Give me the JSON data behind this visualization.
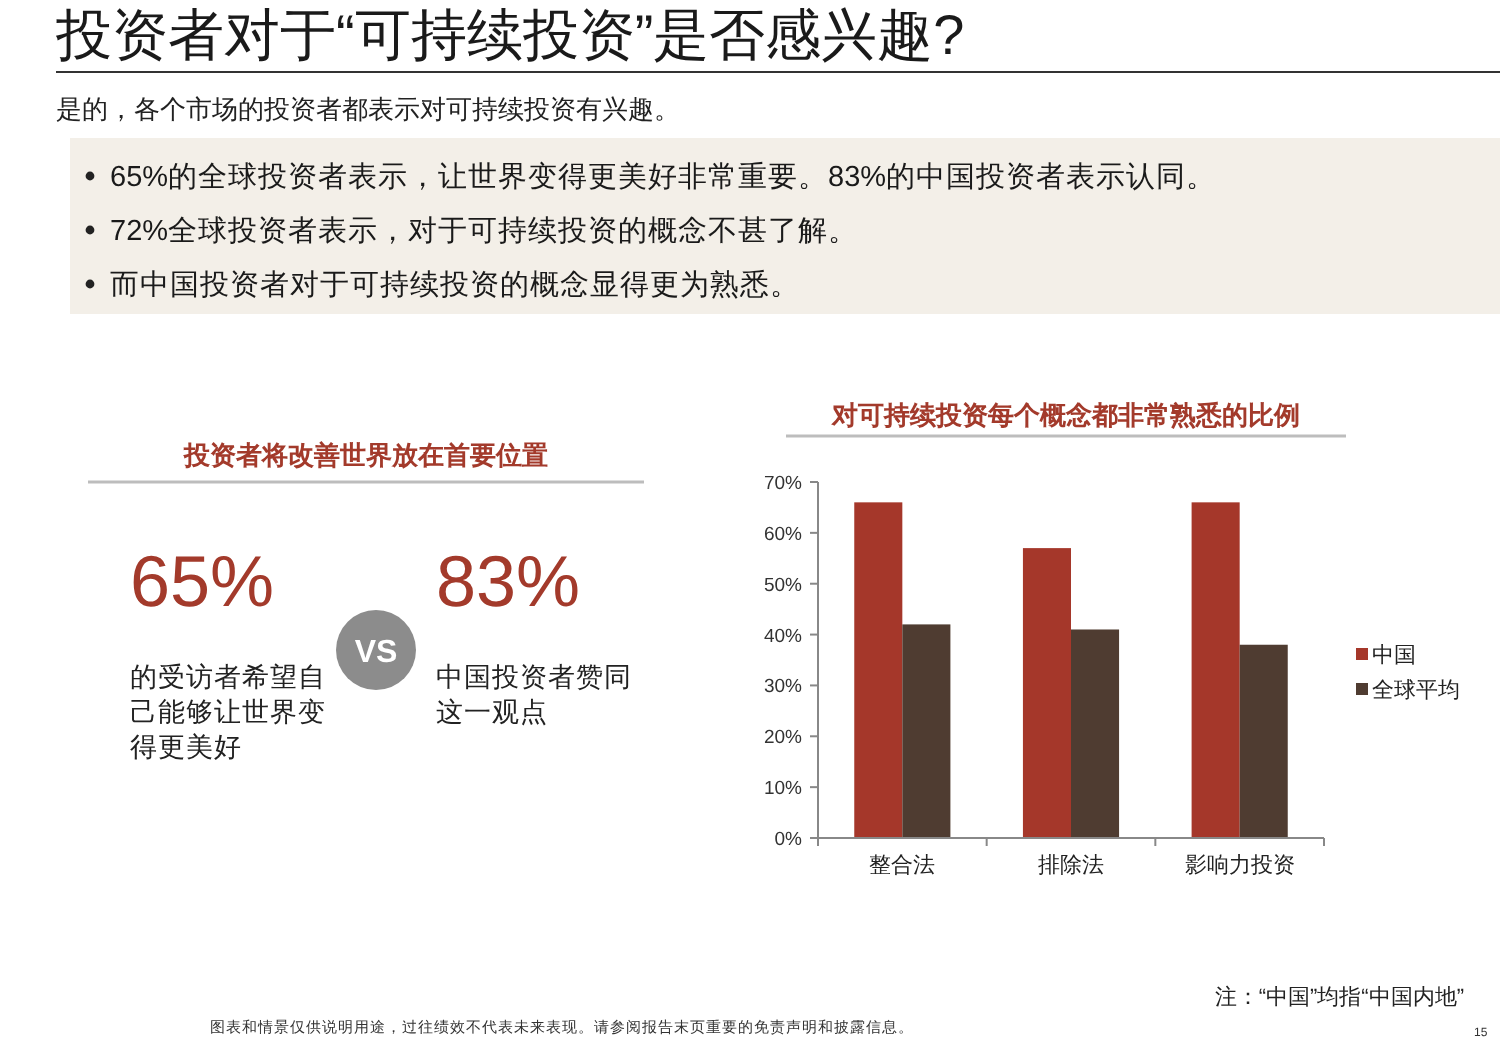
{
  "chart_data": [
    {
      "type": "other",
      "title": "投资者对于“可持续投资”是否感兴趣?",
      "subtitle": "是的，各个市场的投资者都表示对可持续投资有兴趣。",
      "annotations": [
        "65%的全球投资者表示，让世界变得更美好非常重要。83%的中国投资者表示认同。",
        "72%全球投资者表示，对于可持续投资的概念不甚了解。",
        "而中国投资者对于可持续投资的概念显得更为熟悉。"
      ]
    },
    {
      "type": "other",
      "title": "投资者将改善世界放在首要位置",
      "annotations": [
        "65%",
        "的受访者希望自己能够让世界变得更美好",
        "VS",
        "83%",
        "中国投资者赞同这一观点"
      ]
    },
    {
      "type": "bar",
      "title": "对可持续投资每个概念都非常熟悉的比例",
      "categories": [
        "整合法",
        "排除法",
        "影响力投资"
      ],
      "series": [
        {
          "name": "中国",
          "color": "#a5372a",
          "values": [
            66,
            57,
            66
          ]
        },
        {
          "name": "全球平均",
          "color": "#4f3c31",
          "values": [
            42,
            41,
            38
          ]
        }
      ],
      "ylim": [
        0,
        70
      ],
      "yticks": [
        {
          "value": 0,
          "label": "0%"
        },
        {
          "value": 10,
          "label": "10%"
        },
        {
          "value": 20,
          "label": "20%"
        },
        {
          "value": 30,
          "label": "30%"
        },
        {
          "value": 40,
          "label": "40%"
        },
        {
          "value": 50,
          "label": "50%"
        },
        {
          "value": 60,
          "label": "60%"
        },
        {
          "value": 70,
          "label": "70%"
        }
      ],
      "legend": "right",
      "annotations": [
        "注：“中国”均指“中国内地”",
        "图表和情景仅供说明用途，过往绩效不代表未来表现。请参阅报告末页重要的免责声明和披露信息。",
        "15"
      ]
    }
  ]
}
